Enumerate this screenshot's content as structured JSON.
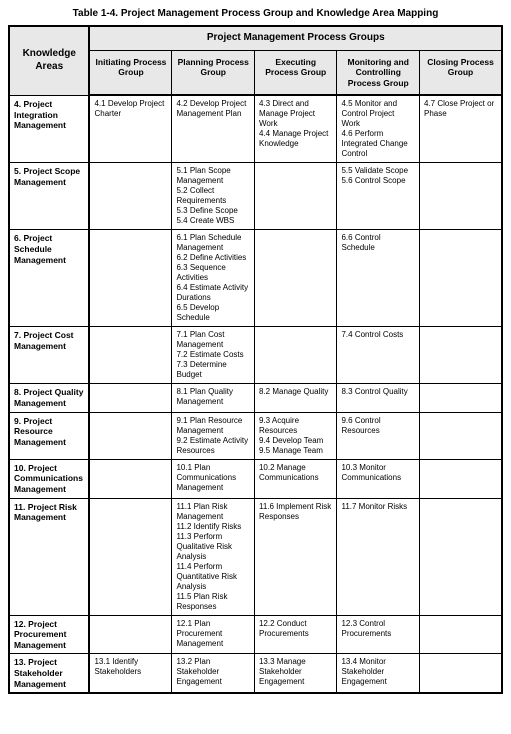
{
  "title": "Table 1-4. Project Management Process Group and Knowledge Area Mapping",
  "super_header": "Project Management Process Groups",
  "corner_header": "Knowledge Areas",
  "columns": [
    "Initiating Process Group",
    "Planning Process Group",
    "Executing Process Group",
    "Monitoring and Controlling Process Group",
    "Closing Process Group"
  ],
  "rows": [
    {
      "ka": "4. Project Integration Management",
      "cells": [
        "4.1 Develop Project Charter",
        "4.2 Develop Project Management Plan",
        "4.3 Direct and Manage Project Work\n4.4 Manage Project Knowledge",
        "4.5 Monitor and Control Project Work\n4.6 Perform Integrated Change Control",
        "4.7 Close Project or Phase"
      ]
    },
    {
      "ka": "5. Project Scope Management",
      "cells": [
        "",
        "5.1 Plan Scope Management\n5.2 Collect Requirements\n5.3 Define Scope\n5.4 Create WBS",
        "",
        "5.5 Validate Scope\n5.6 Control Scope",
        ""
      ]
    },
    {
      "ka": "6. Project Schedule Management",
      "cells": [
        "",
        "6.1 Plan Schedule Management\n6.2 Define Activities\n6.3 Sequence Activities\n6.4 Estimate Activity Durations\n6.5 Develop Schedule",
        "",
        "6.6 Control Schedule",
        ""
      ]
    },
    {
      "ka": "7. Project Cost Management",
      "cells": [
        "",
        "7.1 Plan Cost Management\n7.2 Estimate Costs\n7.3 Determine Budget",
        "",
        "7.4 Control Costs",
        ""
      ]
    },
    {
      "ka": "8. Project Quality Management",
      "cells": [
        "",
        "8.1 Plan Quality Management",
        "8.2 Manage Quality",
        "8.3 Control Quality",
        ""
      ]
    },
    {
      "ka": "9. Project Resource Management",
      "cells": [
        "",
        "9.1 Plan Resource Management\n9.2 Estimate Activity Resources",
        "9.3 Acquire Resources\n9.4 Develop Team\n9.5 Manage Team",
        "9.6 Control Resources",
        ""
      ]
    },
    {
      "ka": "10. Project Communications Management",
      "cells": [
        "",
        "10.1 Plan Communications Management",
        "10.2 Manage Communications",
        "10.3 Monitor Communications",
        ""
      ]
    },
    {
      "ka": "11. Project Risk Management",
      "cells": [
        "",
        "11.1 Plan Risk Management\n11.2 Identify Risks\n11.3 Perform Qualitative Risk Analysis\n11.4 Perform Quantitative Risk Analysis\n11.5 Plan Risk Responses",
        "11.6 Implement Risk Responses",
        "11.7 Monitor Risks",
        ""
      ]
    },
    {
      "ka": "12. Project Procurement Management",
      "cells": [
        "",
        "12.1 Plan Procurement Management",
        "12.2 Conduct Procurements",
        "12.3 Control Procurements",
        ""
      ]
    },
    {
      "ka": "13. Project Stakeholder Management",
      "cells": [
        "13.1 Identify Stakeholders",
        "13.2 Plan Stakeholder Engagement",
        "13.3 Manage Stakeholder Engagement",
        "13.4 Monitor Stakeholder Engagement",
        ""
      ]
    }
  ],
  "styling": {
    "header_bg": "#e8e8e8",
    "border_color": "#000000",
    "outer_border_width": 2,
    "inner_border_width": 1,
    "title_fontsize": 10,
    "header_fontsize": 10,
    "colhead_fontsize": 8.5,
    "cell_fontsize": 8,
    "font_family": "Arial"
  }
}
